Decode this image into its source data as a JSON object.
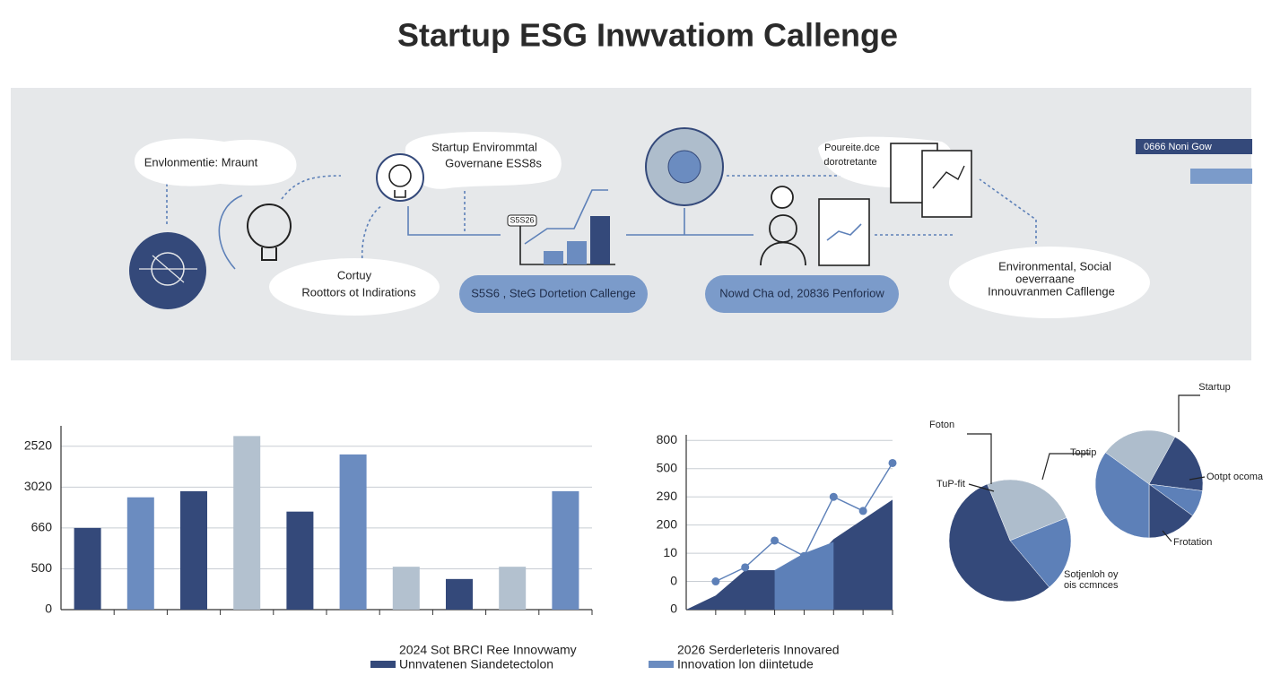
{
  "title": "Startup ESG Inwvatiom Callenge",
  "diagram": {
    "bubble_1": "Envlonmentie: Mraunt",
    "bubble_2": [
      "Startup Envirommtal",
      "Governane ESS8s"
    ],
    "bubble_3": [
      "Cortuy",
      "Roottors ot Indirations"
    ],
    "chart_tag": "S5S26",
    "pill_1": "S5S6 , SteG Dortetion Callenge",
    "pill_2": "Nowd Cha od, 20836 Penforiow",
    "bubble_4": [
      "Poureite.dce",
      "dorotretante"
    ],
    "bubble_5": [
      "Environmental, Social",
      "oeverraane",
      "Innouvranmen Cafllenge"
    ],
    "header_tag": "0666 Noni Gow"
  },
  "chart_data": [
    {
      "type": "bar",
      "categories": [
        null,
        null,
        null,
        null,
        null,
        null,
        null,
        null,
        null,
        null
      ],
      "values": [
        2.0,
        2.75,
        2.9,
        4.25,
        2.4,
        3.8,
        1.05,
        0.75,
        1.05,
        2.9
      ],
      "colors": [
        "#34497a",
        "#6b8cc0",
        "#34497a",
        "#b3c1cf",
        "#34497a",
        "#6b8cc0",
        "#b3c1cf",
        "#34497a",
        "#b3c1cf",
        "#6b8cc0"
      ],
      "ylim": [
        0,
        4.5
      ],
      "yticks": [
        0,
        {
          "value": 1,
          "label": "500"
        },
        {
          "value": 2,
          "label": "660"
        },
        {
          "value": 3,
          "label": "3020"
        },
        {
          "value": 4,
          "label": "2520"
        }
      ],
      "grid": true,
      "legend_title": "2024 Sot BRCI Ree Innovwamy",
      "legend": {
        "name": "Unnvatenen Siandetectolon",
        "color": "#34497a"
      }
    },
    {
      "type": "line",
      "categories": [
        null,
        null,
        null,
        null,
        null,
        null,
        null,
        null
      ],
      "series": [
        {
          "kind": "area",
          "color": "#34497a",
          "values": [
            0,
            0.5,
            1.4,
            1.4,
            1.4,
            2.5,
            3.2,
            3.9
          ]
        },
        {
          "kind": "area",
          "color": "#5d80b8",
          "values": [
            null,
            null,
            null,
            1.4,
            2.0,
            2.4,
            null,
            null
          ]
        },
        {
          "kind": "line",
          "color": "#5d80b8",
          "values": [
            null,
            1.0,
            1.5,
            2.45,
            1.9,
            4.0,
            3.5,
            5.2
          ]
        }
      ],
      "ylim": [
        0,
        6.2
      ],
      "yticks": [
        0,
        {
          "value": 1,
          "label": "0"
        },
        {
          "value": 2,
          "label": "10"
        },
        {
          "value": 3,
          "label": "200"
        },
        {
          "value": 4,
          "label": "290"
        },
        {
          "value": 5,
          "label": "500"
        },
        {
          "value": 6,
          "label": "800"
        }
      ],
      "grid": true,
      "legend_title": "2026 Serderleteris Innovared",
      "legend": {
        "name": "Innovation lon diintetude",
        "color": "#6b8cc0"
      }
    },
    {
      "type": "pie",
      "values": [
        25,
        20,
        55
      ],
      "colors": [
        "#aebdcc",
        "#5d80b8",
        "#34497a"
      ],
      "annotations": [
        "Foton",
        "TuP-fit",
        "Sotjenloh oy",
        "ois ccmnces"
      ]
    },
    {
      "type": "pie",
      "values": [
        23,
        19,
        8,
        15,
        35
      ],
      "colors": [
        "#aebdcc",
        "#34497a",
        "#5d80b8",
        "#34497a",
        "#5d80b8"
      ],
      "annotations": [
        "Startup",
        "Toptip",
        "Ootpt ocomac",
        "Frotation"
      ]
    }
  ]
}
